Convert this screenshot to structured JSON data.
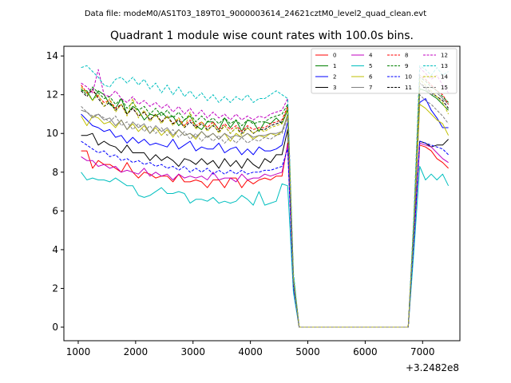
{
  "chart_data": {
    "type": "line",
    "suptitle": "Data file: modeM0/AS1T03_189T01_9000003614_24621cztM0_level2_quad_clean.evt",
    "title": "Quadrant 1 module wise count rates with 100.0s bins.",
    "xlabel": "",
    "ylabel": "",
    "x_offset_label": "+3.2482e8",
    "xlim": [
      750,
      7650
    ],
    "ylim": [
      -0.7,
      14.5
    ],
    "xticks": [
      1000,
      2000,
      3000,
      4000,
      5000,
      6000,
      7000
    ],
    "yticks": [
      0,
      2,
      4,
      6,
      8,
      10,
      12,
      14
    ],
    "x": [
      1050,
      1150,
      1250,
      1350,
      1450,
      1550,
      1650,
      1750,
      1850,
      1950,
      2050,
      2150,
      2250,
      2350,
      2450,
      2550,
      2650,
      2750,
      2850,
      2950,
      3050,
      3150,
      3250,
      3350,
      3450,
      3550,
      3650,
      3750,
      3850,
      3950,
      4050,
      4150,
      4250,
      4350,
      4450,
      4550,
      4650,
      4750,
      4850,
      4950,
      5050,
      5150,
      5250,
      5350,
      5450,
      5550,
      5650,
      5750,
      5850,
      5950,
      6050,
      6150,
      6250,
      6350,
      6450,
      6550,
      6650,
      6750,
      6850,
      6950,
      7050,
      7150,
      7250,
      7350,
      7450
    ],
    "series": [
      {
        "name": "0",
        "color": "#ff0000",
        "dash": "solid",
        "values": [
          9.1,
          9.1,
          8.2,
          8.6,
          8.4,
          8.4,
          8.2,
          8.0,
          8.5,
          8.0,
          7.7,
          8.0,
          7.9,
          7.7,
          7.8,
          7.8,
          7.5,
          7.9,
          7.5,
          7.5,
          7.6,
          7.5,
          7.2,
          7.6,
          7.6,
          7.2,
          7.7,
          7.7,
          7.2,
          7.6,
          7.4,
          7.6,
          7.7,
          7.6,
          7.8,
          7.8,
          9.5,
          2.0,
          0.0,
          0.0,
          0.0,
          0.0,
          0.0,
          0.0,
          0.0,
          0.0,
          0.0,
          0.0,
          0.0,
          0.0,
          0.0,
          0.0,
          0.0,
          0.0,
          0.0,
          0.0,
          0.0,
          0.0,
          4.5,
          9.4,
          9.3,
          9.1,
          8.7,
          8.5,
          8.2
        ]
      },
      {
        "name": "1",
        "color": "#008000",
        "dash": "solid",
        "values": [
          12.2,
          12.2,
          11.7,
          12.2,
          12.0,
          11.5,
          11.3,
          11.8,
          11.0,
          11.4,
          11.2,
          10.7,
          11.0,
          10.9,
          11.1,
          10.8,
          10.9,
          10.4,
          10.7,
          10.9,
          10.4,
          10.2,
          10.6,
          10.6,
          10.2,
          10.8,
          10.3,
          10.7,
          10.1,
          10.7,
          10.6,
          10.1,
          10.6,
          10.5,
          10.8,
          10.5,
          11.2,
          2.6,
          0.0,
          0.0,
          0.0,
          0.0,
          0.0,
          0.0,
          0.0,
          0.0,
          0.0,
          0.0,
          0.0,
          0.0,
          0.0,
          0.0,
          0.0,
          0.0,
          0.0,
          0.0,
          0.0,
          0.0,
          5.3,
          12.3,
          12.2,
          12.0,
          11.8,
          11.5,
          11.2
        ]
      },
      {
        "name": "2",
        "color": "#0000ff",
        "dash": "solid",
        "values": [
          11.0,
          10.7,
          10.4,
          10.3,
          10.1,
          10.2,
          9.8,
          9.9,
          9.5,
          9.8,
          9.5,
          9.7,
          9.4,
          9.5,
          9.4,
          9.3,
          9.7,
          9.2,
          9.4,
          9.6,
          9.1,
          9.3,
          9.2,
          9.2,
          9.5,
          9.0,
          9.2,
          9.3,
          8.9,
          9.2,
          8.9,
          9.3,
          9.1,
          9.1,
          9.2,
          9.4,
          10.6,
          2.3,
          0.0,
          0.0,
          0.0,
          0.0,
          0.0,
          0.0,
          0.0,
          0.0,
          0.0,
          0.0,
          0.0,
          0.0,
          0.0,
          0.0,
          0.0,
          0.0,
          0.0,
          0.0,
          0.0,
          0.0,
          5.0,
          11.6,
          11.8,
          11.2,
          10.8,
          10.3,
          10.3
        ]
      },
      {
        "name": "3",
        "color": "#000000",
        "dash": "solid",
        "values": [
          9.9,
          9.9,
          10.0,
          9.4,
          9.6,
          9.4,
          9.3,
          9.0,
          9.4,
          9.0,
          9.0,
          9.0,
          8.6,
          8.9,
          8.6,
          8.8,
          8.6,
          8.3,
          8.7,
          8.6,
          8.4,
          8.7,
          8.4,
          8.6,
          8.2,
          8.7,
          8.3,
          8.6,
          8.2,
          8.7,
          8.4,
          8.2,
          8.7,
          8.5,
          8.9,
          8.9,
          10.2,
          2.2,
          0.0,
          0.0,
          0.0,
          0.0,
          0.0,
          0.0,
          0.0,
          0.0,
          0.0,
          0.0,
          0.0,
          0.0,
          0.0,
          0.0,
          0.0,
          0.0,
          0.0,
          0.0,
          0.0,
          0.0,
          4.7,
          9.6,
          9.5,
          9.3,
          9.4,
          9.4,
          9.7
        ]
      },
      {
        "name": "4",
        "color": "#c000c0",
        "dash": "solid",
        "values": [
          8.8,
          8.6,
          8.6,
          8.3,
          8.4,
          8.2,
          8.3,
          8.0,
          8.1,
          8.0,
          7.9,
          8.2,
          7.8,
          8.0,
          7.8,
          7.9,
          7.6,
          7.9,
          7.7,
          7.8,
          7.7,
          7.8,
          7.6,
          8.0,
          7.6,
          7.7,
          7.7,
          7.5,
          7.9,
          7.6,
          7.7,
          7.7,
          7.9,
          7.8,
          7.9,
          8.0,
          9.4,
          2.0,
          0.0,
          0.0,
          0.0,
          0.0,
          0.0,
          0.0,
          0.0,
          0.0,
          0.0,
          0.0,
          0.0,
          0.0,
          0.0,
          0.0,
          0.0,
          0.0,
          0.0,
          0.0,
          0.0,
          0.0,
          4.5,
          9.5,
          9.4,
          9.3,
          9.0,
          8.7,
          8.5
        ]
      },
      {
        "name": "5",
        "color": "#00bfbf",
        "dash": "solid",
        "values": [
          8.0,
          7.6,
          7.7,
          7.6,
          7.6,
          7.5,
          7.7,
          7.5,
          7.3,
          7.3,
          6.8,
          6.7,
          6.8,
          7.0,
          7.2,
          6.9,
          6.9,
          7.0,
          6.9,
          6.4,
          6.6,
          6.6,
          6.5,
          6.7,
          6.4,
          6.5,
          6.4,
          6.5,
          6.8,
          6.6,
          6.3,
          7.0,
          6.3,
          6.4,
          6.5,
          7.4,
          7.3,
          1.8,
          0.0,
          0.0,
          0.0,
          0.0,
          0.0,
          0.0,
          0.0,
          0.0,
          0.0,
          0.0,
          0.0,
          0.0,
          0.0,
          0.0,
          0.0,
          0.0,
          0.0,
          0.0,
          0.0,
          0.0,
          4.0,
          8.3,
          7.6,
          7.9,
          7.6,
          7.9,
          7.3
        ]
      },
      {
        "name": "6",
        "color": "#bfbf00",
        "dash": "solid",
        "values": [
          10.9,
          10.4,
          10.9,
          10.8,
          10.5,
          10.6,
          10.3,
          10.7,
          10.2,
          10.5,
          10.1,
          10.4,
          10.0,
          10.3,
          9.9,
          10.2,
          9.8,
          10.2,
          9.9,
          10.0,
          9.7,
          10.1,
          9.8,
          10.0,
          9.7,
          10.0,
          9.6,
          10.0,
          9.8,
          10.0,
          9.7,
          9.9,
          9.8,
          10.0,
          9.9,
          10.1,
          10.9,
          2.3,
          0.0,
          0.0,
          0.0,
          0.0,
          0.0,
          0.0,
          0.0,
          0.0,
          0.0,
          0.0,
          0.0,
          0.0,
          0.0,
          0.0,
          0.0,
          0.0,
          0.0,
          0.0,
          0.0,
          0.0,
          5.0,
          11.5,
          11.3,
          11.0,
          10.7,
          10.5,
          9.9
        ]
      },
      {
        "name": "7",
        "color": "#808080",
        "dash": "solid",
        "values": [
          11.2,
          11.1,
          10.8,
          11.0,
          10.7,
          10.8,
          10.4,
          10.7,
          10.2,
          10.6,
          10.3,
          10.5,
          10.0,
          10.4,
          10.1,
          10.3,
          9.9,
          10.2,
          9.9,
          10.0,
          9.8,
          10.1,
          9.8,
          10.0,
          9.7,
          10.0,
          9.8,
          9.9,
          9.8,
          10.0,
          9.8,
          9.9,
          9.9,
          10.0,
          10.0,
          10.1,
          11.0,
          2.3,
          0.0,
          0.0,
          0.0,
          0.0,
          0.0,
          0.0,
          0.0,
          0.0,
          0.0,
          0.0,
          0.0,
          0.0,
          0.0,
          0.0,
          0.0,
          0.0,
          0.0,
          0.0,
          0.0,
          0.0,
          5.1,
          12.6,
          12.3,
          12.0,
          12.1,
          11.8,
          11.5
        ]
      },
      {
        "name": "8",
        "color": "#ff0000",
        "dash": "dashed",
        "values": [
          12.5,
          12.1,
          12.2,
          11.9,
          11.6,
          11.7,
          11.3,
          11.5,
          11.0,
          11.3,
          10.9,
          11.1,
          10.7,
          11.0,
          10.6,
          10.9,
          10.5,
          10.8,
          10.4,
          10.7,
          10.4,
          10.6,
          10.3,
          10.6,
          10.2,
          10.5,
          10.2,
          10.4,
          10.1,
          10.4,
          10.2,
          10.3,
          10.3,
          10.5,
          10.6,
          10.7,
          11.4,
          2.5,
          0.0,
          0.0,
          0.0,
          0.0,
          0.0,
          0.0,
          0.0,
          0.0,
          0.0,
          0.0,
          0.0,
          0.0,
          0.0,
          0.0,
          0.0,
          0.0,
          0.0,
          0.0,
          0.0,
          0.0,
          5.5,
          13.0,
          12.8,
          12.5,
          12.2,
          12.0,
          11.5
        ]
      },
      {
        "name": "9",
        "color": "#008000",
        "dash": "dashed",
        "values": [
          12.3,
          12.0,
          12.4,
          12.1,
          11.8,
          11.9,
          11.5,
          11.8,
          11.3,
          11.6,
          11.2,
          11.4,
          11.0,
          11.3,
          10.9,
          11.2,
          10.8,
          11.1,
          10.7,
          11.0,
          10.6,
          10.9,
          10.6,
          10.8,
          10.5,
          10.8,
          10.5,
          10.7,
          10.4,
          10.7,
          10.5,
          10.6,
          10.6,
          10.8,
          10.9,
          11.0,
          11.5,
          2.6,
          0.0,
          0.0,
          0.0,
          0.0,
          0.0,
          0.0,
          0.0,
          0.0,
          0.0,
          0.0,
          0.0,
          0.0,
          0.0,
          0.0,
          0.0,
          0.0,
          0.0,
          0.0,
          0.0,
          0.0,
          5.6,
          12.9,
          12.7,
          12.4,
          12.2,
          11.9,
          11.6
        ]
      },
      {
        "name": "10",
        "color": "#0000ff",
        "dash": "dashed",
        "values": [
          9.6,
          9.4,
          9.2,
          9.0,
          9.1,
          8.8,
          8.9,
          8.6,
          8.7,
          8.5,
          8.6,
          8.4,
          8.5,
          8.3,
          8.4,
          8.2,
          8.3,
          8.1,
          8.3,
          8.0,
          8.2,
          8.0,
          8.2,
          7.9,
          8.1,
          7.9,
          8.1,
          7.9,
          8.1,
          7.9,
          8.0,
          8.0,
          8.1,
          8.1,
          8.2,
          8.3,
          9.2,
          2.1,
          0.0,
          0.0,
          0.0,
          0.0,
          0.0,
          0.0,
          0.0,
          0.0,
          0.0,
          0.0,
          0.0,
          0.0,
          0.0,
          0.0,
          0.0,
          0.0,
          0.0,
          0.0,
          0.0,
          0.0,
          4.6,
          9.6,
          9.5,
          9.4,
          9.3,
          9.2,
          8.9
        ]
      },
      {
        "name": "11",
        "color": "#000000",
        "dash": "dashed",
        "values": [
          12.2,
          11.9,
          12.3,
          11.8,
          11.4,
          11.6,
          11.2,
          11.5,
          11.0,
          11.3,
          10.9,
          11.1,
          10.7,
          11.0,
          10.6,
          10.9,
          10.5,
          10.7,
          10.3,
          10.6,
          10.3,
          10.5,
          10.2,
          10.4,
          10.1,
          10.4,
          10.0,
          10.3,
          10.0,
          10.3,
          10.0,
          10.2,
          10.2,
          10.4,
          10.5,
          10.6,
          11.3,
          2.5,
          0.0,
          0.0,
          0.0,
          0.0,
          0.0,
          0.0,
          0.0,
          0.0,
          0.0,
          0.0,
          0.0,
          0.0,
          0.0,
          0.0,
          0.0,
          0.0,
          0.0,
          0.0,
          0.0,
          0.0,
          5.4,
          12.6,
          12.4,
          12.1,
          11.9,
          11.7,
          11.3
        ]
      },
      {
        "name": "12",
        "color": "#c000c0",
        "dash": "dashed",
        "values": [
          12.6,
          12.4,
          12.1,
          13.3,
          12.0,
          11.9,
          12.2,
          11.8,
          11.6,
          11.9,
          11.5,
          11.7,
          11.4,
          11.6,
          11.3,
          11.5,
          11.1,
          11.4,
          11.0,
          11.3,
          10.9,
          11.2,
          10.8,
          11.1,
          10.8,
          11.0,
          10.7,
          11.0,
          10.7,
          10.9,
          10.7,
          10.9,
          10.8,
          11.0,
          11.1,
          11.2,
          11.8,
          2.7,
          0.0,
          0.0,
          0.0,
          0.0,
          0.0,
          0.0,
          0.0,
          0.0,
          0.0,
          0.0,
          0.0,
          0.0,
          0.0,
          0.0,
          0.0,
          0.0,
          0.0,
          0.0,
          0.0,
          0.0,
          5.8,
          13.4,
          13.1,
          12.8,
          13.0,
          12.5,
          12.1
        ]
      },
      {
        "name": "13",
        "color": "#00bfbf",
        "dash": "dashed",
        "values": [
          13.4,
          13.5,
          13.2,
          12.9,
          12.5,
          12.4,
          12.8,
          12.9,
          12.6,
          12.9,
          12.5,
          12.8,
          12.3,
          12.6,
          12.1,
          12.5,
          12.0,
          12.4,
          11.9,
          12.2,
          11.8,
          12.1,
          11.7,
          12.0,
          11.6,
          11.9,
          11.6,
          11.9,
          11.7,
          12.0,
          11.6,
          11.8,
          11.8,
          12.0,
          12.2,
          12.0,
          11.8,
          2.8,
          0.0,
          0.0,
          0.0,
          0.0,
          0.0,
          0.0,
          0.0,
          0.0,
          0.0,
          0.0,
          0.0,
          0.0,
          0.0,
          0.0,
          0.0,
          0.0,
          0.0,
          0.0,
          0.0,
          0.0,
          5.9,
          13.5,
          13.3,
          13.0,
          13.4,
          13.0,
          13.2
        ]
      },
      {
        "name": "14",
        "color": "#bfbf00",
        "dash": "dashed",
        "values": [
          12.4,
          12.1,
          11.7,
          12.0,
          11.4,
          11.8,
          11.1,
          11.5,
          10.9,
          11.8,
          10.8,
          11.2,
          10.6,
          11.0,
          10.5,
          10.9,
          10.4,
          10.8,
          10.3,
          11.1,
          10.2,
          10.6,
          10.1,
          10.5,
          10.0,
          10.4,
          10.0,
          10.3,
          9.9,
          10.3,
          10.0,
          10.2,
          10.1,
          10.3,
          10.4,
          10.5,
          11.3,
          2.5,
          0.0,
          0.0,
          0.0,
          0.0,
          0.0,
          0.0,
          0.0,
          0.0,
          0.0,
          0.0,
          0.0,
          0.0,
          0.0,
          0.0,
          0.0,
          0.0,
          0.0,
          0.0,
          0.0,
          0.0,
          5.4,
          12.8,
          12.5,
          12.2,
          11.9,
          11.6,
          11.0
        ]
      },
      {
        "name": "15",
        "color": "#808080",
        "dash": "dashed",
        "values": [
          11.4,
          11.1,
          10.9,
          11.0,
          10.8,
          10.6,
          10.9,
          10.4,
          10.6,
          10.2,
          10.5,
          10.1,
          10.4,
          10.0,
          10.3,
          9.9,
          10.2,
          9.8,
          10.1,
          9.7,
          10.0,
          9.6,
          9.9,
          9.6,
          9.9,
          9.5,
          9.8,
          9.5,
          9.8,
          9.5,
          9.7,
          9.6,
          9.8,
          9.7,
          9.9,
          10.0,
          10.8,
          2.3,
          0.0,
          0.0,
          0.0,
          0.0,
          0.0,
          0.0,
          0.0,
          0.0,
          0.0,
          0.0,
          0.0,
          0.0,
          0.0,
          0.0,
          0.0,
          0.0,
          0.0,
          0.0,
          0.0,
          0.0,
          5.0,
          12.0,
          11.7,
          11.5,
          11.2,
          10.9,
          10.5
        ]
      }
    ],
    "legend": {
      "location": "upper right",
      "columns": 4
    }
  }
}
